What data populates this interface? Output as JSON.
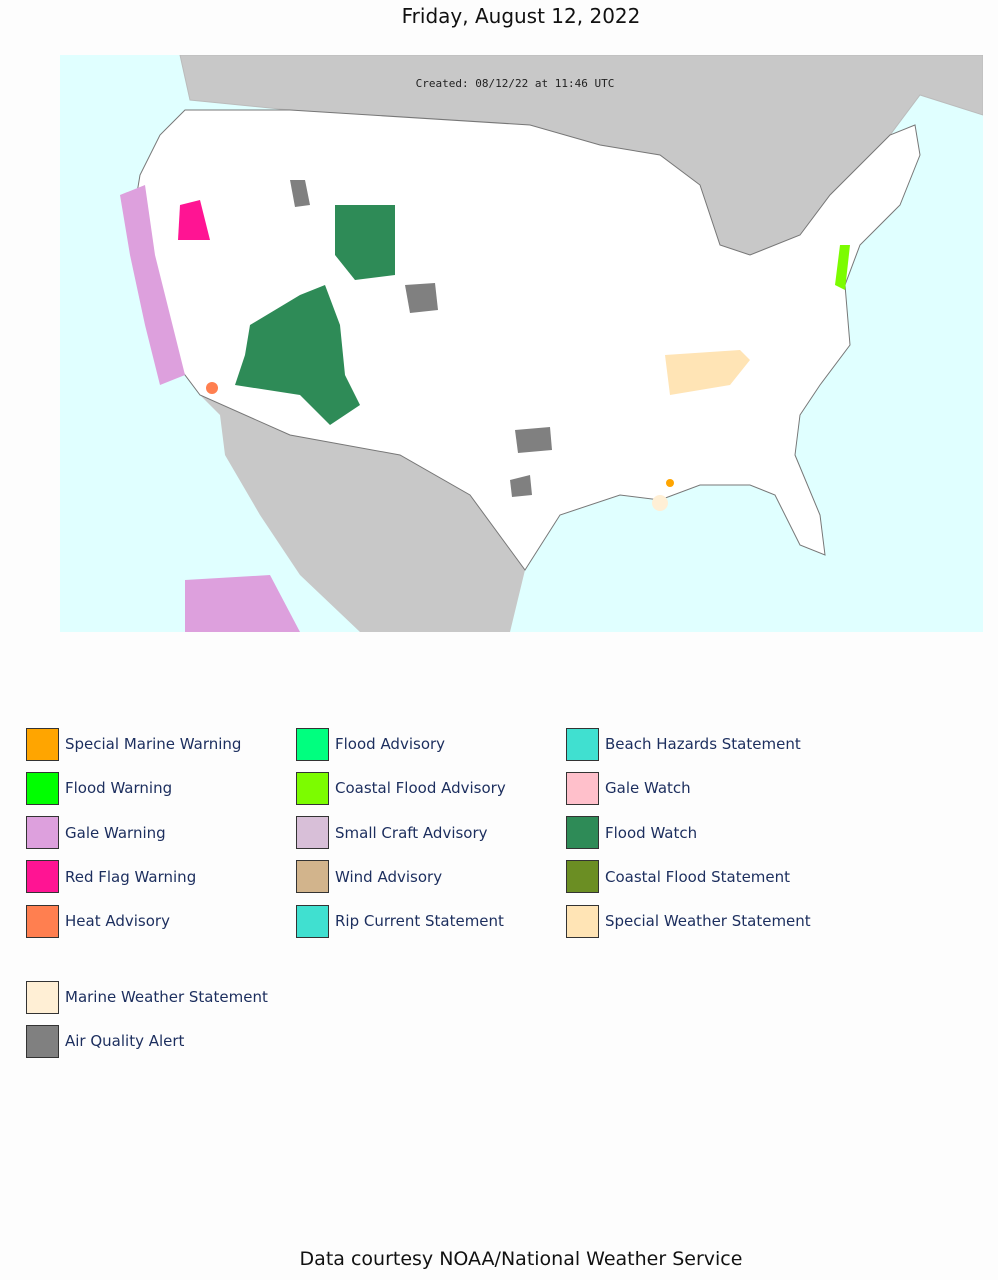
{
  "header": {
    "title": "Friday, August 12, 2022"
  },
  "map": {
    "created": "Created: 08/12/22 at 11:46 UTC"
  },
  "legend": {
    "columns": [
      [
        {
          "name": "Special Marine Warning",
          "color": "#FFA500"
        },
        {
          "name": "Flood Warning",
          "color": "#00FF00"
        },
        {
          "name": "Gale Warning",
          "color": "#DDA0DD"
        },
        {
          "name": "Red Flag Warning",
          "color": "#FF1493"
        },
        {
          "name": "Heat Advisory",
          "color": "#FF7F50"
        }
      ],
      [
        {
          "name": "Flood Advisory",
          "color": "#00FF7F"
        },
        {
          "name": "Coastal Flood Advisory",
          "color": "#7CFC00"
        },
        {
          "name": "Small Craft Advisory",
          "color": "#D8BFD8"
        },
        {
          "name": "Wind Advisory",
          "color": "#D2B48C"
        },
        {
          "name": "Rip Current Statement",
          "color": "#40E0D0"
        }
      ],
      [
        {
          "name": "Beach Hazards Statement",
          "color": "#40E0D0"
        },
        {
          "name": "Gale Watch",
          "color": "#FFC0CB"
        },
        {
          "name": "Flood Watch",
          "color": "#2E8B57"
        },
        {
          "name": "Coastal Flood Statement",
          "color": "#6B8E23"
        },
        {
          "name": "Special Weather Statement",
          "color": "#FFE4B5"
        }
      ]
    ],
    "extra": [
      {
        "name": "Marine Weather Statement",
        "color": "#FFEFD5"
      },
      {
        "name": "Air Quality Alert",
        "color": "#808080"
      }
    ]
  },
  "footer": {
    "text": "Data courtesy NOAA/National Weather Service"
  }
}
